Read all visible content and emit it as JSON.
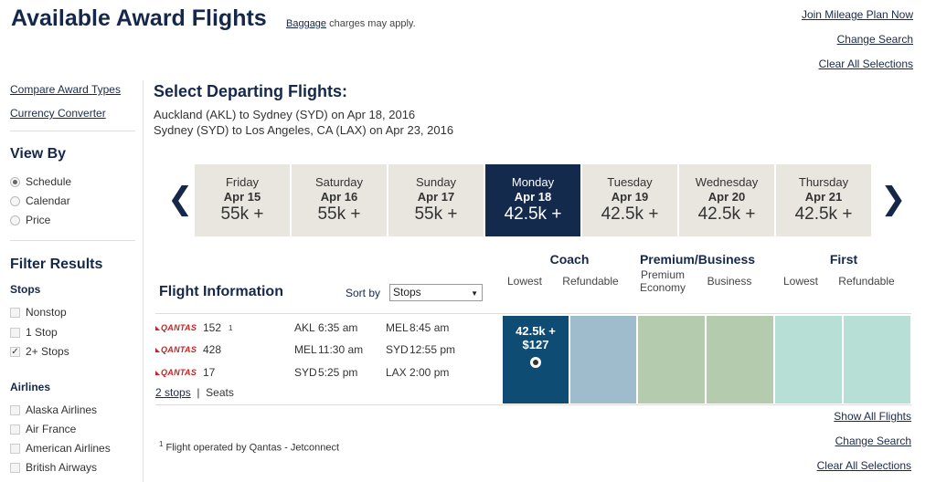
{
  "header": {
    "title": "Available Award Flights",
    "baggage_link": "Baggage",
    "baggage_note": " charges may apply.",
    "links": [
      "Join Mileage Plan Now",
      "Change Search",
      "Clear All Selections"
    ]
  },
  "sidebar": {
    "links": [
      "Compare Award Types",
      "Currency Converter"
    ],
    "view_by": {
      "heading": "View By",
      "options": [
        {
          "label": "Schedule",
          "selected": true
        },
        {
          "label": "Calendar",
          "selected": false
        },
        {
          "label": "Price",
          "selected": false
        }
      ]
    },
    "filter": {
      "heading": "Filter Results",
      "stops_heading": "Stops",
      "stops": [
        {
          "label": "Nonstop",
          "checked": false
        },
        {
          "label": "1 Stop",
          "checked": false
        },
        {
          "label": "2+ Stops",
          "checked": true
        }
      ],
      "airlines_heading": "Airlines",
      "airlines": [
        "Alaska Airlines",
        "Air France",
        "American Airlines",
        "British Airways"
      ]
    }
  },
  "main": {
    "heading": "Select Departing Flights:",
    "routes": [
      "Auckland (AKL) to Sydney (SYD) on Apr 18, 2016",
      "Sydney (SYD) to Los Angeles, CA (LAX) on Apr 23, 2016"
    ],
    "days": [
      {
        "name": "Friday",
        "date": "Apr 15",
        "price": "55k +"
      },
      {
        "name": "Saturday",
        "date": "Apr 16",
        "price": "55k +"
      },
      {
        "name": "Sunday",
        "date": "Apr 17",
        "price": "55k +"
      },
      {
        "name": "Monday",
        "date": "Apr 18",
        "price": "42.5k +",
        "selected": true
      },
      {
        "name": "Tuesday",
        "date": "Apr 19",
        "price": "42.5k +"
      },
      {
        "name": "Wednesday",
        "date": "Apr 20",
        "price": "42.5k +"
      },
      {
        "name": "Thursday",
        "date": "Apr 21",
        "price": "42.5k +"
      }
    ],
    "cabins": {
      "coach": "Coach",
      "premium": "Premium/Business",
      "first": "First",
      "sub": [
        "Lowest",
        "Refundable",
        "Premium Economy",
        "Business",
        "Lowest",
        "Refundable"
      ]
    },
    "flight_info_heading": "Flight Information",
    "sort_label": "Sort by",
    "sort_value": "Stops",
    "flight": {
      "airline_logo": "QANTAS",
      "segments": [
        {
          "flight": "152",
          "footnote": "1",
          "from": "AKL",
          "dep": "6:35 am",
          "to": "MEL",
          "arr": "8:45 am"
        },
        {
          "flight": "428",
          "footnote": "",
          "from": "MEL",
          "dep": "11:30 am",
          "to": "SYD",
          "arr": "12:55 pm"
        },
        {
          "flight": "17",
          "footnote": "",
          "from": "SYD",
          "dep": "5:25 pm",
          "to": "LAX",
          "arr": "2:00 pm"
        }
      ],
      "stops_link": "2 stops",
      "seats_link": "Seats",
      "fare_miles": "42.5k +",
      "fare_cash": "$127"
    },
    "fare_colors": [
      "#0f4c74",
      "#9fbccc",
      "#b5cbad",
      "#b5cbad",
      "#b7dfd5",
      "#b7dfd5"
    ],
    "footnote_mark": "1",
    "footnote": " Flight operated by Qantas - Jetconnect",
    "bottom_links": [
      "Show All Flights",
      "Change Search",
      "Clear All Selections"
    ]
  }
}
